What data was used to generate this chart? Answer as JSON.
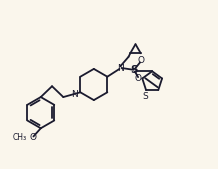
{
  "background_color": "#faf6ec",
  "line_color": "#1a1a2e",
  "line_width": 1.3,
  "font_size": 6.5,
  "xlim": [
    0,
    10
  ],
  "ylim": [
    0,
    7.7
  ]
}
